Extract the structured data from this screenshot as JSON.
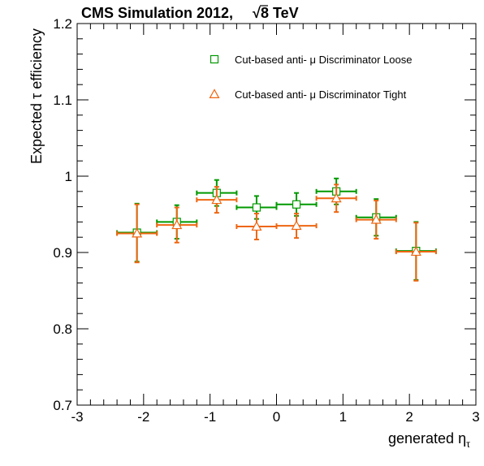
{
  "header": {
    "title_prefix": "CMS Simulation 2012,",
    "title_sqrt": "√",
    "title_energy": "8 TeV"
  },
  "axes": {
    "ylabel_prefix": "Expected ",
    "ylabel_symbol": "τ",
    "ylabel_suffix": " efficiency",
    "xlabel_main": "generated η",
    "xlabel_sub": "τ"
  },
  "colors": {
    "loose": "#009900",
    "tight": "#ee6611",
    "frame": "#000000"
  },
  "chart_data": {
    "type": "scatter",
    "xlim": [
      -3,
      3
    ],
    "ylim": [
      0.7,
      1.2
    ],
    "xticks": [
      -3,
      -2,
      -1,
      0,
      1,
      2,
      3
    ],
    "xtick_labels": [
      "-3",
      "-2",
      "-1",
      "0",
      "1",
      "2",
      "3"
    ],
    "yticks": [
      0.7,
      0.8,
      0.9,
      1.0,
      1.1,
      1.2
    ],
    "ytick_labels": [
      "0.7",
      "0.8",
      "0.9",
      "1",
      "1.1",
      "1.2"
    ],
    "legend_position": "top-right",
    "series": [
      {
        "name": "Cut-based anti- μ Discriminator Loose",
        "marker": "open-square",
        "points": [
          {
            "x": -2.1,
            "xerr": 0.3,
            "y": 0.926,
            "yerr": 0.038
          },
          {
            "x": -1.5,
            "xerr": 0.3,
            "y": 0.94,
            "yerr": 0.022
          },
          {
            "x": -0.9,
            "xerr": 0.3,
            "y": 0.978,
            "yerr": 0.017
          },
          {
            "x": -0.3,
            "xerr": 0.3,
            "y": 0.959,
            "yerr": 0.015
          },
          {
            "x": 0.3,
            "xerr": 0.3,
            "y": 0.963,
            "yerr": 0.015
          },
          {
            "x": 0.9,
            "xerr": 0.3,
            "y": 0.98,
            "yerr": 0.017
          },
          {
            "x": 1.5,
            "xerr": 0.3,
            "y": 0.946,
            "yerr": 0.024
          },
          {
            "x": 2.1,
            "xerr": 0.3,
            "y": 0.902,
            "yerr": 0.038
          }
        ]
      },
      {
        "name": "Cut-based anti- μ Discriminator Tight",
        "marker": "open-triangle",
        "points": [
          {
            "x": -2.1,
            "xerr": 0.3,
            "y": 0.925,
            "yerr": 0.038
          },
          {
            "x": -1.5,
            "xerr": 0.3,
            "y": 0.936,
            "yerr": 0.023
          },
          {
            "x": -0.9,
            "xerr": 0.3,
            "y": 0.969,
            "yerr": 0.017
          },
          {
            "x": -0.3,
            "xerr": 0.3,
            "y": 0.934,
            "yerr": 0.017
          },
          {
            "x": 0.3,
            "xerr": 0.3,
            "y": 0.935,
            "yerr": 0.016
          },
          {
            "x": 0.9,
            "xerr": 0.3,
            "y": 0.971,
            "yerr": 0.018
          },
          {
            "x": 1.5,
            "xerr": 0.3,
            "y": 0.943,
            "yerr": 0.025
          },
          {
            "x": 2.1,
            "xerr": 0.3,
            "y": 0.901,
            "yerr": 0.038
          }
        ]
      }
    ]
  }
}
